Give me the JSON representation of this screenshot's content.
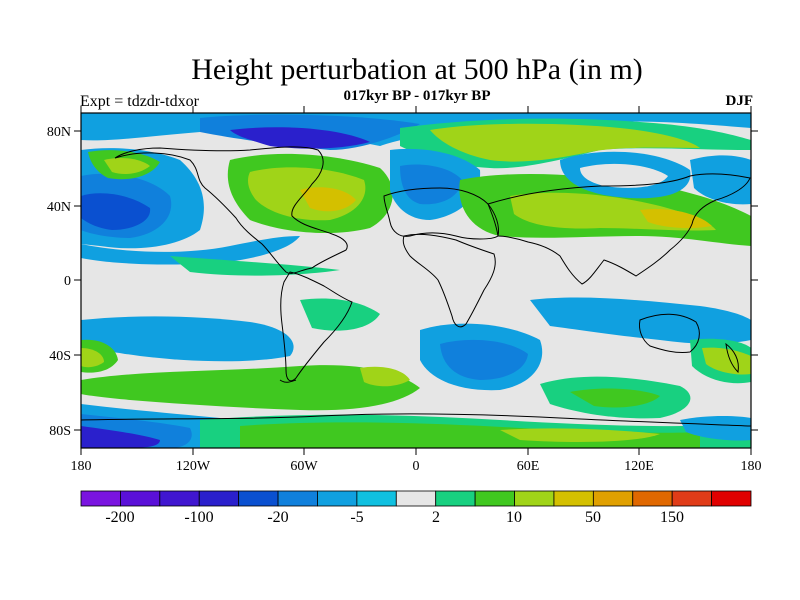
{
  "title": "Height perturbation at 500 hPa (in m)",
  "subtitle": "017kyr BP - 017kyr BP",
  "left_label": "Expt = tdzdr-tdxor",
  "right_label": "DJF",
  "x_ticks": [
    "180",
    "120W",
    "60W",
    "0",
    "60E",
    "120E",
    "180"
  ],
  "y_ticks": [
    "80N",
    "40N",
    "0",
    "40S",
    "80S"
  ],
  "colorbar": {
    "colors": [
      "#7a14e0",
      "#5a10d8",
      "#4016d0",
      "#2a20cc",
      "#0a50d0",
      "#1080dc",
      "#10a0e0",
      "#10c0e0",
      "#e6e6e6",
      "#18d080",
      "#40c820",
      "#a0d418",
      "#d4c000",
      "#e0a000",
      "#e06800",
      "#e03c18",
      "#e00000"
    ],
    "labels": [
      "-200",
      "-100",
      "-20",
      "-5",
      "2",
      "10",
      "50",
      "150"
    ]
  }
}
